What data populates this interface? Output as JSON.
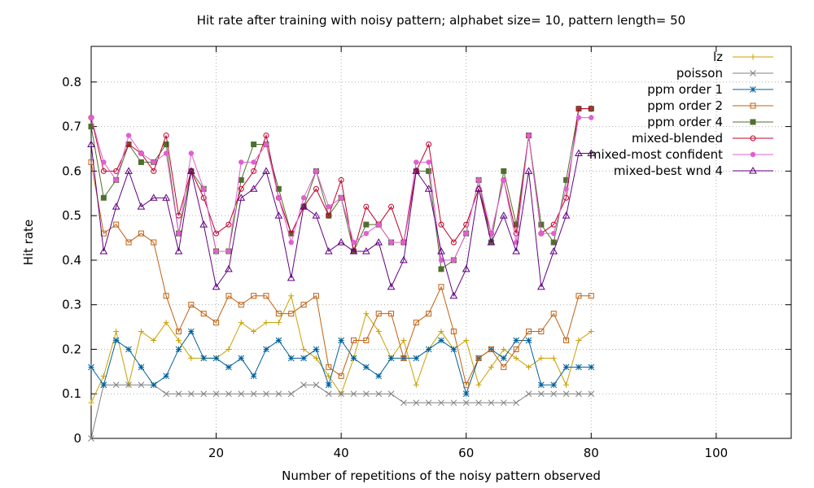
{
  "chart_data": {
    "type": "line",
    "title": "Hit rate after training with noisy pattern; alphabet size= 10, pattern length= 50",
    "xlabel": "Number of repetitions of the noisy pattern observed",
    "ylabel": "Hit rate",
    "xlim": [
      0,
      112
    ],
    "ylim": [
      0,
      0.88
    ],
    "xticks": [
      20,
      40,
      60,
      80,
      100
    ],
    "yticks": [
      0,
      0.1,
      0.2,
      0.3,
      0.4,
      0.5,
      0.6,
      0.7,
      0.8
    ],
    "grid": true,
    "legend_position": "top-right",
    "x": [
      0,
      2,
      4,
      6,
      8,
      10,
      12,
      14,
      16,
      18,
      20,
      22,
      24,
      26,
      28,
      30,
      32,
      34,
      36,
      38,
      40,
      42,
      44,
      46,
      48,
      50,
      52,
      54,
      56,
      58,
      60,
      62,
      64,
      66,
      68,
      70,
      72,
      74,
      76,
      78,
      80
    ],
    "series": [
      {
        "name": "lz",
        "color": "#c8a000",
        "marker": "plus",
        "values": [
          0.08,
          0.14,
          0.24,
          0.12,
          0.24,
          0.22,
          0.26,
          0.22,
          0.18,
          0.18,
          0.18,
          0.2,
          0.26,
          0.24,
          0.26,
          0.26,
          0.32,
          0.2,
          0.18,
          0.14,
          0.1,
          0.18,
          0.28,
          0.24,
          0.18,
          0.22,
          0.12,
          0.2,
          0.24,
          0.2,
          0.22,
          0.12,
          0.16,
          0.2,
          0.18,
          0.16,
          0.18,
          0.18,
          0.12,
          0.22,
          0.24
        ]
      },
      {
        "name": "poisson",
        "color": "#808080",
        "marker": "x",
        "values": [
          0.0,
          0.12,
          0.12,
          0.12,
          0.12,
          0.12,
          0.1,
          0.1,
          0.1,
          0.1,
          0.1,
          0.1,
          0.1,
          0.1,
          0.1,
          0.1,
          0.1,
          0.12,
          0.12,
          0.1,
          0.1,
          0.1,
          0.1,
          0.1,
          0.1,
          0.08,
          0.08,
          0.08,
          0.08,
          0.08,
          0.08,
          0.08,
          0.08,
          0.08,
          0.08,
          0.1,
          0.1,
          0.1,
          0.1,
          0.1,
          0.1
        ]
      },
      {
        "name": "ppm order 1",
        "color": "#00609a",
        "marker": "star",
        "values": [
          0.16,
          0.12,
          0.22,
          0.2,
          0.16,
          0.12,
          0.14,
          0.2,
          0.24,
          0.18,
          0.18,
          0.16,
          0.18,
          0.14,
          0.2,
          0.22,
          0.18,
          0.18,
          0.2,
          0.12,
          0.22,
          0.18,
          0.16,
          0.14,
          0.18,
          0.18,
          0.18,
          0.2,
          0.22,
          0.2,
          0.1,
          0.18,
          0.2,
          0.18,
          0.22,
          0.22,
          0.12,
          0.12,
          0.16,
          0.16,
          0.16
        ]
      },
      {
        "name": "ppm order 2",
        "color": "#c06010",
        "marker": "square-open",
        "values": [
          0.62,
          0.46,
          0.48,
          0.44,
          0.46,
          0.44,
          0.32,
          0.24,
          0.3,
          0.28,
          0.26,
          0.32,
          0.3,
          0.32,
          0.32,
          0.28,
          0.28,
          0.3,
          0.32,
          0.16,
          0.14,
          0.22,
          0.22,
          0.28,
          0.28,
          0.18,
          0.26,
          0.28,
          0.34,
          0.24,
          0.12,
          0.18,
          0.2,
          0.16,
          0.2,
          0.24,
          0.24,
          0.28,
          0.22,
          0.32,
          0.32
        ]
      },
      {
        "name": "ppm order 4",
        "color": "#4f6f2f",
        "marker": "square",
        "values": [
          0.7,
          0.54,
          0.58,
          0.66,
          0.62,
          0.62,
          0.66,
          0.46,
          0.6,
          0.56,
          0.42,
          0.42,
          0.58,
          0.66,
          0.66,
          0.56,
          0.46,
          0.52,
          0.6,
          0.5,
          0.54,
          0.42,
          0.48,
          0.48,
          0.44,
          0.44,
          0.6,
          0.6,
          0.38,
          0.4,
          0.46,
          0.58,
          0.44,
          0.6,
          0.48,
          0.68,
          0.48,
          0.44,
          0.58,
          0.74,
          0.74
        ]
      },
      {
        "name": "mixed-blended",
        "color": "#c0002a",
        "marker": "circle-open",
        "values": [
          0.72,
          0.6,
          0.6,
          0.66,
          0.64,
          0.6,
          0.68,
          0.5,
          0.6,
          0.54,
          0.46,
          0.48,
          0.56,
          0.6,
          0.68,
          0.54,
          0.46,
          0.52,
          0.56,
          0.5,
          0.58,
          0.42,
          0.52,
          0.48,
          0.52,
          0.44,
          0.6,
          0.66,
          0.48,
          0.44,
          0.48,
          0.56,
          0.46,
          0.58,
          0.46,
          0.68,
          0.46,
          0.48,
          0.54,
          0.74,
          0.74
        ]
      },
      {
        "name": "mixed-most confident",
        "color": "#e060d0",
        "marker": "dot",
        "values": [
          0.72,
          0.62,
          0.58,
          0.68,
          0.64,
          0.62,
          0.64,
          0.46,
          0.64,
          0.56,
          0.42,
          0.42,
          0.62,
          0.62,
          0.66,
          0.54,
          0.44,
          0.54,
          0.6,
          0.52,
          0.54,
          0.44,
          0.46,
          0.48,
          0.44,
          0.44,
          0.62,
          0.62,
          0.4,
          0.4,
          0.46,
          0.58,
          0.46,
          0.58,
          0.44,
          0.68,
          0.46,
          0.46,
          0.56,
          0.72,
          0.72
        ]
      },
      {
        "name": "mixed-best wnd 4",
        "color": "#600080",
        "marker": "triangle-open",
        "values": [
          0.66,
          0.42,
          0.52,
          0.6,
          0.52,
          0.54,
          0.54,
          0.42,
          0.6,
          0.48,
          0.34,
          0.38,
          0.54,
          0.56,
          0.6,
          0.5,
          0.36,
          0.52,
          0.5,
          0.42,
          0.44,
          0.42,
          0.42,
          0.44,
          0.34,
          0.4,
          0.6,
          0.56,
          0.42,
          0.32,
          0.38,
          0.56,
          0.44,
          0.5,
          0.42,
          0.6,
          0.34,
          0.42,
          0.5,
          0.64,
          0.64
        ]
      }
    ]
  }
}
